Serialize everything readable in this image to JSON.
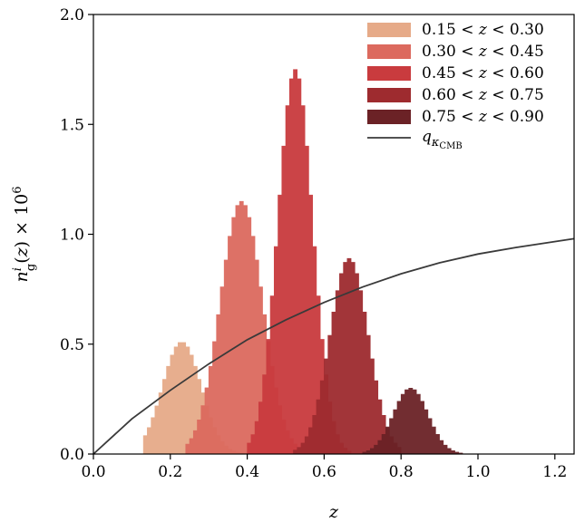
{
  "chart_data": {
    "type": "area",
    "xlabel": "z",
    "ylabel": "n_g^i(z) × 10^6",
    "xlim": [
      0.0,
      1.25
    ],
    "ylim": [
      0.0,
      2.0
    ],
    "xticks": [
      0.0,
      0.2,
      0.4,
      0.6,
      0.8,
      1.0,
      1.2
    ],
    "xtick_labels": [
      "0.0",
      "0.2",
      "0.4",
      "0.6",
      "0.8",
      "1.0",
      "1.2"
    ],
    "yticks": [
      0.0,
      0.5,
      1.0,
      1.5,
      2.0
    ],
    "ytick_labels": [
      "0.0",
      "0.5",
      "1.0",
      "1.5",
      "2.0"
    ],
    "grid": false,
    "legend_position": "top-right",
    "series": [
      {
        "name": "0.15 < z < 0.30",
        "color": "#e6aa88",
        "kind": "histogram",
        "mean": 0.23,
        "sigma": 0.05,
        "peak": 0.51,
        "zmin": 0.13,
        "zmax": 0.42
      },
      {
        "name": "0.30 < z < 0.45",
        "color": "#dc6a5e",
        "kind": "histogram",
        "mean": 0.385,
        "sigma": 0.055,
        "peak": 1.15,
        "zmin": 0.24,
        "zmax": 0.53
      },
      {
        "name": "0.45 < z < 0.60",
        "color": "#c93b3e",
        "kind": "histogram",
        "mean": 0.525,
        "sigma": 0.045,
        "peak": 1.75,
        "zmin": 0.4,
        "zmax": 0.67
      },
      {
        "name": "0.60 < z < 0.75",
        "color": "#9e2b2f",
        "kind": "histogram",
        "mean": 0.665,
        "sigma": 0.05,
        "peak": 0.89,
        "zmin": 0.52,
        "zmax": 0.8
      },
      {
        "name": "0.75 < z < 0.90",
        "color": "#6b2226",
        "kind": "histogram",
        "mean": 0.825,
        "sigma": 0.045,
        "peak": 0.3,
        "zmin": 0.7,
        "zmax": 0.96
      },
      {
        "name": "q_κCMB",
        "color": "#3a3a3a",
        "kind": "line",
        "x": [
          0.0,
          0.1,
          0.2,
          0.3,
          0.4,
          0.5,
          0.6,
          0.7,
          0.8,
          0.9,
          1.0,
          1.1,
          1.25
        ],
        "values": [
          0.0,
          0.16,
          0.29,
          0.41,
          0.52,
          0.61,
          0.69,
          0.76,
          0.82,
          0.87,
          0.91,
          0.94,
          0.98
        ]
      }
    ],
    "legend_labels": [
      {
        "lo": "0.15",
        "hi": "0.30"
      },
      {
        "lo": "0.30",
        "hi": "0.45"
      },
      {
        "lo": "0.45",
        "hi": "0.60"
      },
      {
        "lo": "0.60",
        "hi": "0.75"
      },
      {
        "lo": "0.75",
        "hi": "0.90"
      }
    ],
    "legend_line_label": {
      "q": "q",
      "kappa": "κ",
      "sub": "CMB"
    }
  }
}
